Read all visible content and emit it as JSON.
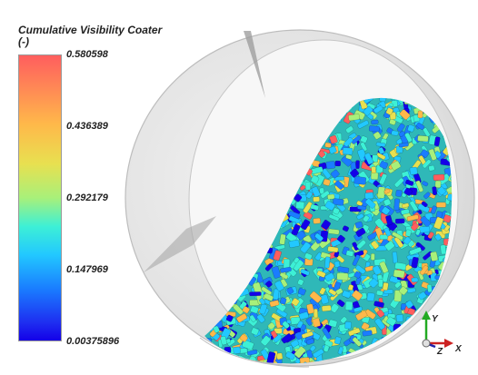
{
  "legend": {
    "title": "Cumulative Visibility Coater\n(-)",
    "ticks": [
      "0.580598",
      "0.436389",
      "0.292179",
      "0.147969",
      "0.00375896"
    ]
  },
  "axes": {
    "y": "Y",
    "z": "Z",
    "x": "X"
  },
  "colors": {
    "colormap": [
      "#ff5e5e",
      "#ffb84a",
      "#e8e050",
      "#a8f07a",
      "#3df0d6",
      "#22c8ff",
      "#1a7cff",
      "#1400e8"
    ],
    "drum_outline": "#bdbdbd",
    "axis_y": "#22aa22",
    "axis_x": "#cc2222",
    "axis_z": "#2222aa"
  }
}
